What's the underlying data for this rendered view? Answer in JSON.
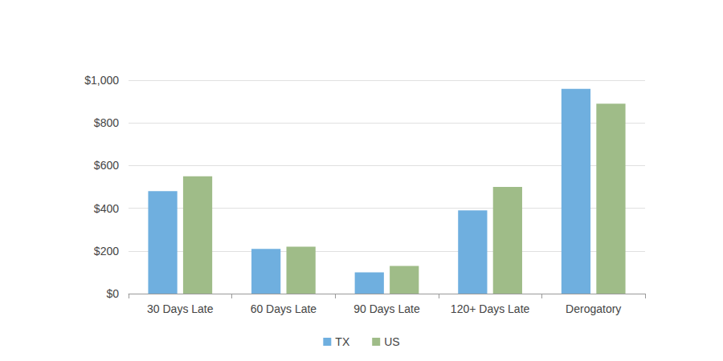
{
  "chart_data": {
    "type": "bar",
    "categories": [
      "30 Days Late",
      "60 Days Late",
      "90 Days Late",
      "120+ Days Late",
      "Derogatory"
    ],
    "series": [
      {
        "name": "TX",
        "color": "#6fafdf",
        "values": [
          480,
          210,
          100,
          390,
          960
        ]
      },
      {
        "name": "US",
        "color": "#9fbc88",
        "values": [
          550,
          220,
          130,
          500,
          890
        ]
      }
    ],
    "ylim": [
      0,
      1000
    ],
    "yticks": [
      {
        "value": 0,
        "label": "$0"
      },
      {
        "value": 200,
        "label": "$200"
      },
      {
        "value": 400,
        "label": "$400"
      },
      {
        "value": 600,
        "label": "$600"
      },
      {
        "value": 800,
        "label": "$800"
      },
      {
        "value": 1000,
        "label": "$1,000"
      }
    ],
    "grid": true,
    "legend": "bottom"
  }
}
